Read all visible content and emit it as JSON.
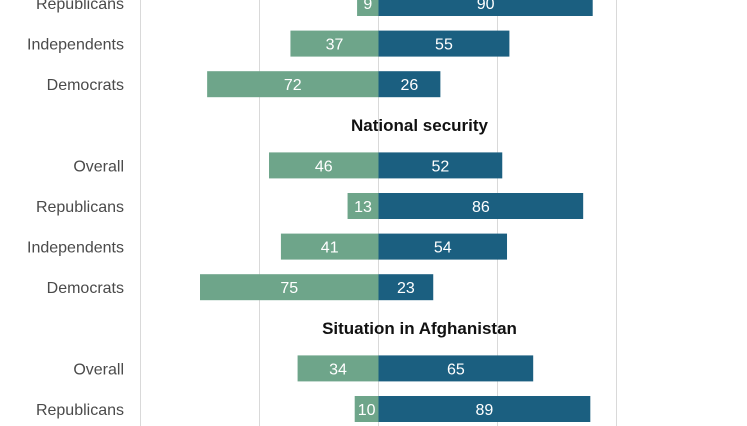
{
  "chart_data": {
    "type": "bar",
    "orientation": "diverging-horizontal",
    "colors": {
      "left": "#6ea58a",
      "right": "#1b5f80"
    },
    "xlim": [
      -100,
      100
    ],
    "sections": [
      {
        "title": "",
        "rows": [
          {
            "label": "Republicans",
            "left": 9,
            "right": 90
          },
          {
            "label": "Independents",
            "left": 37,
            "right": 55
          },
          {
            "label": "Democrats",
            "left": 72,
            "right": 26
          }
        ]
      },
      {
        "title": "National security",
        "rows": [
          {
            "label": "Overall",
            "left": 46,
            "right": 52
          },
          {
            "label": "Republicans",
            "left": 13,
            "right": 86
          },
          {
            "label": "Independents",
            "left": 41,
            "right": 54
          },
          {
            "label": "Democrats",
            "left": 75,
            "right": 23
          }
        ]
      },
      {
        "title": "Situation in Afghanistan",
        "rows": [
          {
            "label": "Overall",
            "left": 34,
            "right": 65
          },
          {
            "label": "Republicans",
            "left": 10,
            "right": 89
          }
        ]
      }
    ]
  }
}
